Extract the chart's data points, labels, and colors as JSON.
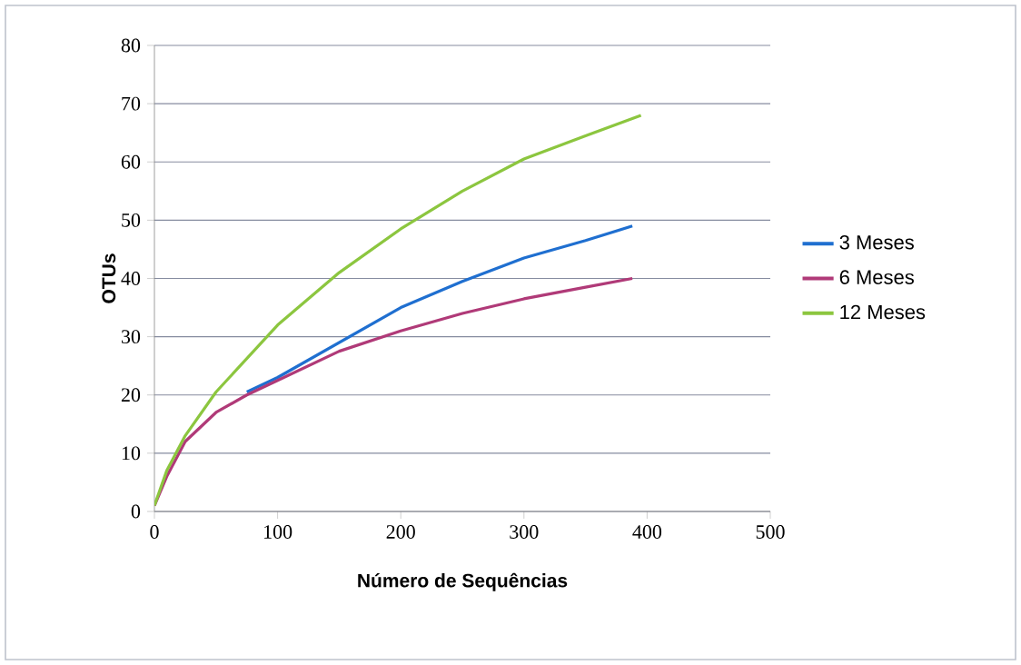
{
  "chart_data": {
    "type": "line",
    "xlabel": "Número de Sequências",
    "ylabel": "OTUs",
    "xlim": [
      0,
      500
    ],
    "xticks": [
      0,
      100,
      200,
      300,
      400,
      500
    ],
    "ylim": [
      0,
      80
    ],
    "yticks": [
      0,
      10,
      20,
      30,
      40,
      50,
      60,
      70,
      80
    ],
    "grid": "y",
    "legend": "right",
    "marker": "none",
    "line_style": "solid",
    "series": [
      {
        "name": "3 Meses",
        "color": "#1f6fd0",
        "x": [
          75,
          100,
          150,
          200,
          250,
          300,
          350,
          388
        ],
        "values": [
          20.5,
          23,
          29,
          35,
          39.5,
          43.5,
          46.5,
          49
        ]
      },
      {
        "name": "6 Meses",
        "color": "#b03a78",
        "x": [
          0,
          10,
          25,
          50,
          75,
          100,
          150,
          200,
          250,
          300,
          350,
          388
        ],
        "values": [
          1,
          6,
          12,
          17,
          20,
          22.5,
          27.5,
          31,
          34,
          36.5,
          38.5,
          40
        ]
      },
      {
        "name": "12 Meses",
        "color": "#8cc63f",
        "x": [
          0,
          10,
          25,
          50,
          100,
          150,
          200,
          250,
          300,
          350,
          395
        ],
        "values": [
          1,
          7,
          13,
          20.5,
          32,
          41,
          48.5,
          55,
          60.5,
          64.5,
          68
        ]
      }
    ]
  }
}
